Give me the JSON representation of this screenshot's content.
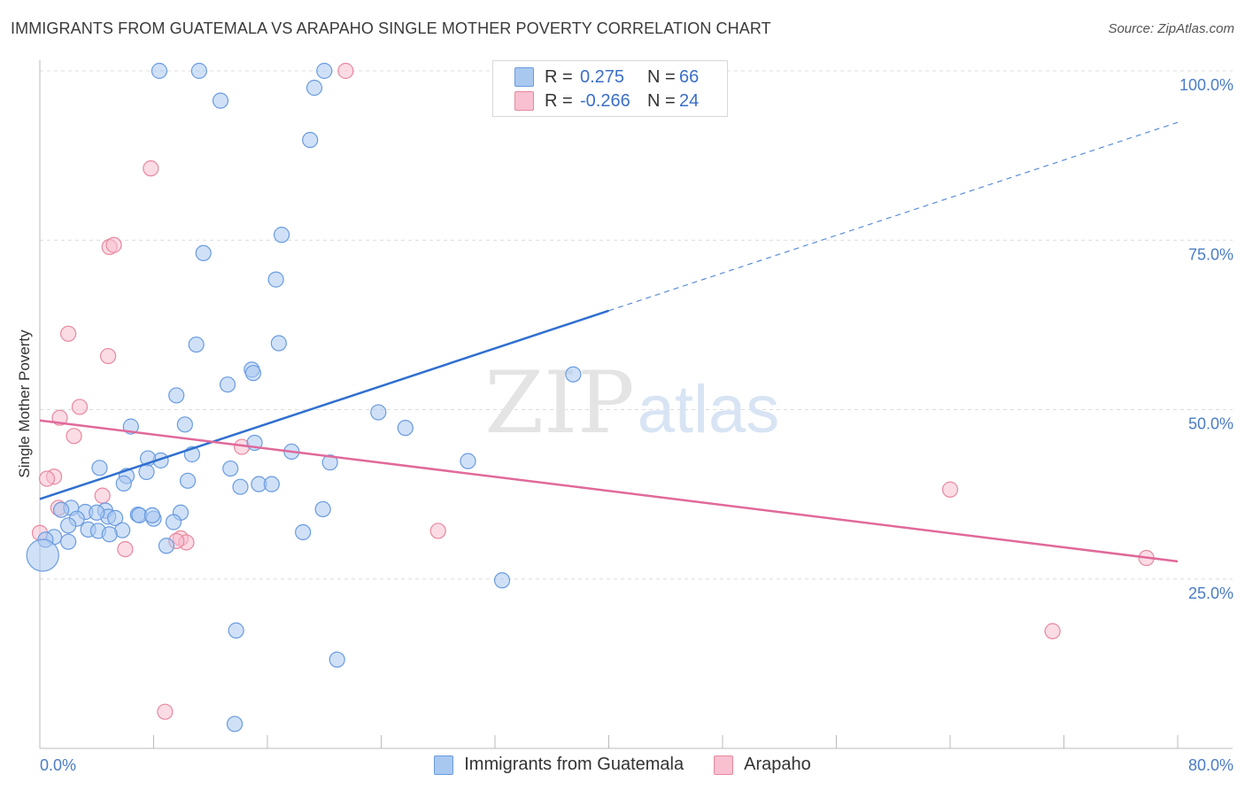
{
  "title": "IMMIGRANTS FROM GUATEMALA VS ARAPAHO SINGLE MOTHER POVERTY CORRELATION CHART",
  "source": "Source: ZipAtlas.com",
  "watermark": {
    "zip": "ZIP",
    "atlas": "atlas"
  },
  "legend": {
    "rows": [
      {
        "r_label": "R =",
        "r_value": "0.275",
        "n_label": "N =",
        "n_value": "66",
        "color": "#a9c8f0",
        "border": "#6a9be0"
      },
      {
        "r_label": "R =",
        "r_value": "-0.266",
        "n_label": "N =",
        "n_value": "24",
        "color": "#f8c0d0",
        "border": "#e8889f"
      }
    ]
  },
  "chart_data": {
    "type": "scatter",
    "xlabel": "",
    "ylabel": "Single Mother Poverty",
    "xlim": [
      0,
      80
    ],
    "ylim": [
      0,
      100
    ],
    "x_tick_labels": [
      "0.0%",
      "80.0%"
    ],
    "y_ticks": [
      25,
      50,
      75,
      100
    ],
    "y_tick_labels": [
      "25.0%",
      "50.0%",
      "75.0%",
      "100.0%"
    ],
    "grid": "horizontal dashed",
    "legend_position": "top-center",
    "series": [
      {
        "name": "Immigrants from Guatemala",
        "color": "#a9c8f0",
        "stroke": "#6a9be0",
        "trend_color": "#2f6fd0",
        "trend": {
          "x0": 0,
          "y0": 36.8,
          "x1": 40,
          "y1": 64.6,
          "dashed_to_x": 80,
          "dashed_to_y": 92.4
        },
        "points": [
          [
            8.4,
            100
          ],
          [
            11.2,
            100
          ],
          [
            20.0,
            100
          ],
          [
            12.7,
            95.6
          ],
          [
            19.3,
            97.5
          ],
          [
            19.0,
            89.8
          ],
          [
            17.0,
            75.8
          ],
          [
            11.5,
            73.1
          ],
          [
            16.6,
            69.2
          ],
          [
            16.8,
            59.8
          ],
          [
            11.0,
            59.6
          ],
          [
            14.9,
            55.9
          ],
          [
            15.0,
            55.4
          ],
          [
            13.2,
            53.7
          ],
          [
            9.6,
            52.1
          ],
          [
            37.5,
            55.2
          ],
          [
            23.8,
            49.6
          ],
          [
            25.7,
            47.3
          ],
          [
            6.4,
            47.5
          ],
          [
            10.2,
            47.8
          ],
          [
            15.1,
            45.1
          ],
          [
            17.7,
            43.8
          ],
          [
            10.7,
            43.4
          ],
          [
            8.5,
            42.5
          ],
          [
            7.6,
            42.8
          ],
          [
            20.4,
            42.2
          ],
          [
            30.1,
            42.4
          ],
          [
            4.2,
            41.4
          ],
          [
            13.4,
            41.3
          ],
          [
            7.5,
            40.8
          ],
          [
            6.1,
            40.2
          ],
          [
            10.4,
            39.5
          ],
          [
            5.9,
            39.1
          ],
          [
            15.4,
            39.0
          ],
          [
            16.3,
            39.0
          ],
          [
            14.1,
            38.6
          ],
          [
            2.2,
            35.5
          ],
          [
            1.5,
            35.2
          ],
          [
            4.6,
            35.1
          ],
          [
            3.2,
            34.9
          ],
          [
            6.9,
            34.5
          ],
          [
            7.0,
            34.4
          ],
          [
            9.9,
            34.8
          ],
          [
            19.9,
            35.3
          ],
          [
            4.8,
            34.2
          ],
          [
            5.3,
            34.0
          ],
          [
            8.0,
            33.9
          ],
          [
            9.4,
            33.4
          ],
          [
            2.6,
            33.9
          ],
          [
            3.4,
            32.3
          ],
          [
            4.1,
            32.1
          ],
          [
            2.0,
            32.9
          ],
          [
            5.8,
            32.2
          ],
          [
            4.9,
            31.6
          ],
          [
            18.5,
            31.9
          ],
          [
            1.0,
            31.2
          ],
          [
            0.4,
            30.8
          ],
          [
            2.0,
            30.5
          ],
          [
            8.9,
            29.9
          ],
          [
            0.2,
            28.5
          ],
          [
            32.5,
            24.8
          ],
          [
            13.8,
            17.4
          ],
          [
            20.9,
            13.1
          ],
          [
            13.7,
            3.6
          ],
          [
            7.9,
            34.4
          ],
          [
            4.0,
            34.8
          ]
        ]
      },
      {
        "name": "Arapaho",
        "color": "#f8c0d0",
        "stroke": "#e8889f",
        "trend_color": "#e0699a",
        "trend": {
          "x0": 0,
          "y0": 48.4,
          "x1": 80,
          "y1": 27.6
        },
        "points": [
          [
            21.5,
            100
          ],
          [
            7.8,
            85.6
          ],
          [
            4.9,
            74.0
          ],
          [
            5.2,
            74.3
          ],
          [
            2.0,
            61.2
          ],
          [
            4.8,
            57.9
          ],
          [
            2.8,
            50.4
          ],
          [
            1.4,
            48.8
          ],
          [
            2.4,
            46.1
          ],
          [
            14.2,
            44.5
          ],
          [
            1.0,
            40.1
          ],
          [
            0.5,
            39.8
          ],
          [
            4.4,
            37.3
          ],
          [
            1.3,
            35.5
          ],
          [
            0.0,
            31.8
          ],
          [
            28.0,
            32.1
          ],
          [
            9.9,
            31.0
          ],
          [
            10.3,
            30.4
          ],
          [
            9.6,
            30.6
          ],
          [
            6.0,
            29.4
          ],
          [
            64.0,
            38.2
          ],
          [
            77.8,
            28.1
          ],
          [
            71.2,
            17.3
          ],
          [
            8.8,
            5.4
          ]
        ]
      }
    ]
  }
}
